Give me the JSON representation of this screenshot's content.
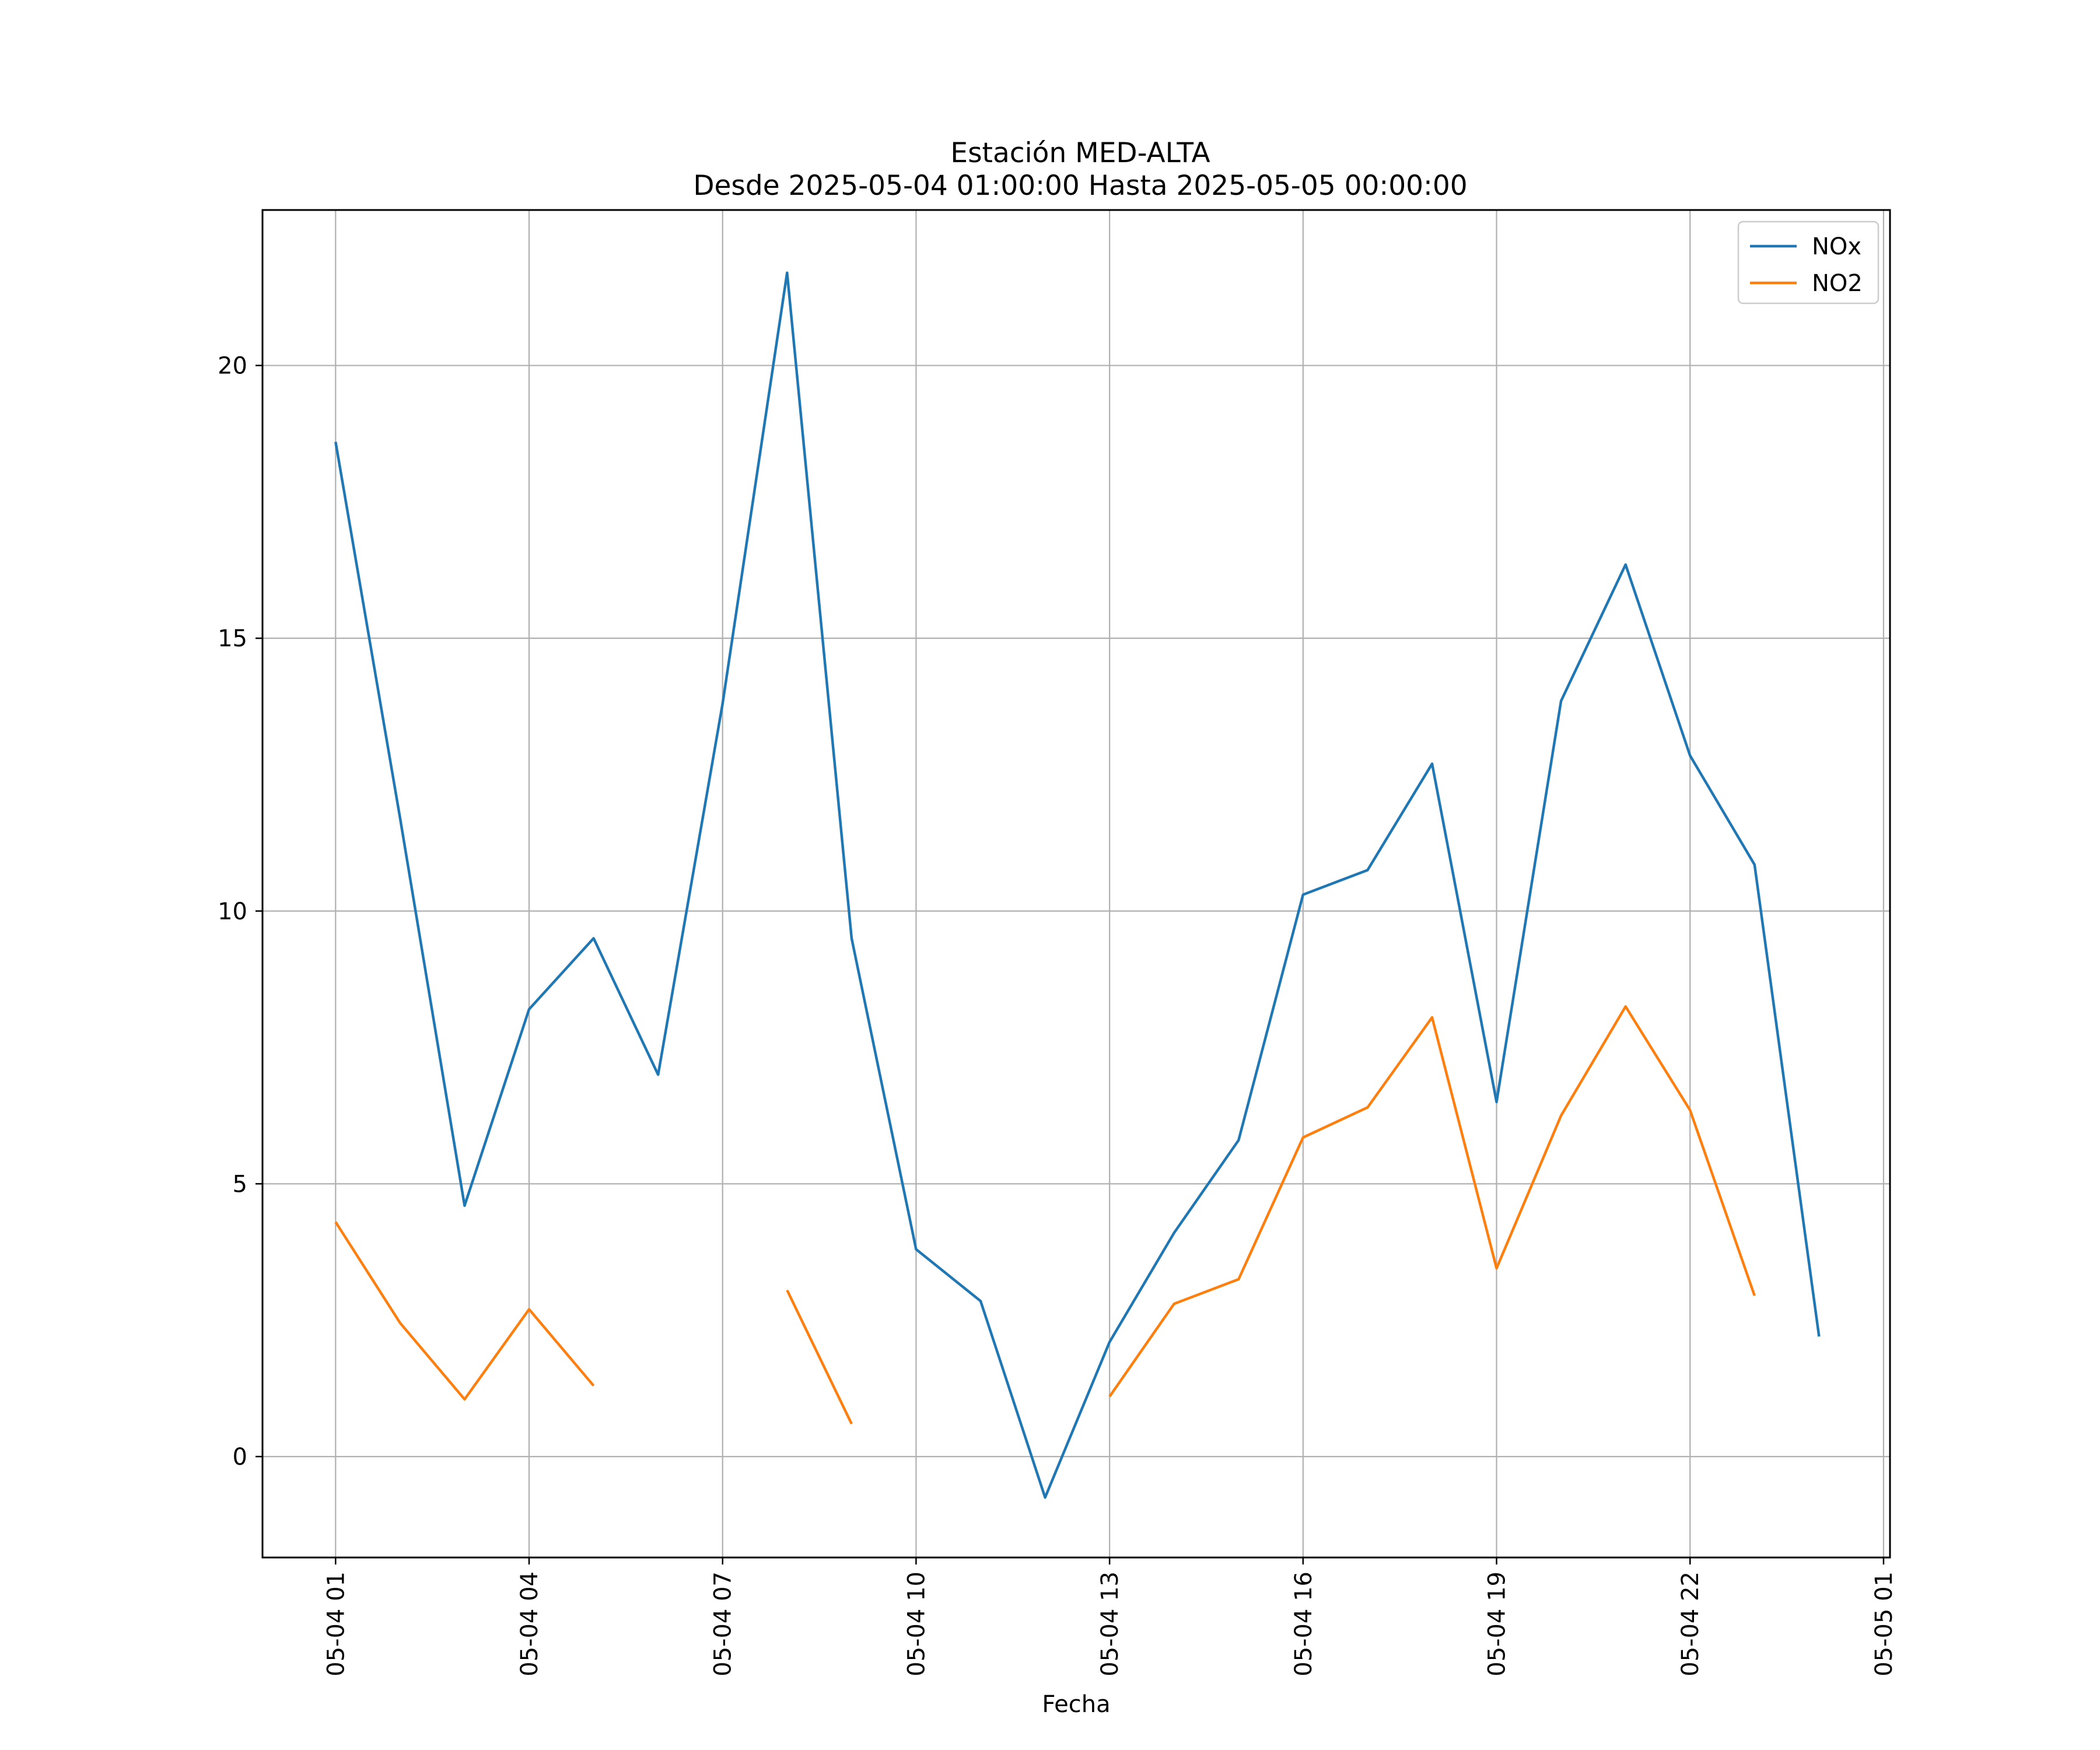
{
  "chart_data": {
    "type": "line",
    "title": "Estación MED-ALTA",
    "subtitle": "Desde 2025-05-04 01:00:00 Hasta 2025-05-05 00:00:00",
    "xlabel": "Fecha",
    "ylabel": "",
    "x": [
      "2025-05-04 01:00",
      "2025-05-04 02:00",
      "2025-05-04 03:00",
      "2025-05-04 04:00",
      "2025-05-04 05:00",
      "2025-05-04 06:00",
      "2025-05-04 07:00",
      "2025-05-04 08:00",
      "2025-05-04 09:00",
      "2025-05-04 10:00",
      "2025-05-04 11:00",
      "2025-05-04 12:00",
      "2025-05-04 13:00",
      "2025-05-04 14:00",
      "2025-05-04 15:00",
      "2025-05-04 16:00",
      "2025-05-04 17:00",
      "2025-05-04 18:00",
      "2025-05-04 19:00",
      "2025-05-04 20:00",
      "2025-05-04 21:00",
      "2025-05-04 22:00",
      "2025-05-04 23:00",
      "2025-05-05 00:00"
    ],
    "series": [
      {
        "name": "NOx",
        "color": "#1f77b4",
        "values": [
          18.6,
          11.7,
          4.6,
          8.2,
          9.5,
          7.0,
          13.8,
          21.7,
          9.5,
          3.8,
          2.85,
          -0.75,
          2.1,
          4.1,
          5.8,
          10.3,
          10.75,
          12.7,
          6.5,
          13.85,
          16.35,
          12.85,
          10.85,
          2.2
        ]
      },
      {
        "name": "NO2",
        "color": "#ff7f0e",
        "values": [
          4.3,
          2.45,
          1.05,
          2.7,
          1.3,
          null,
          null,
          3.05,
          0.6,
          null,
          null,
          null,
          1.1,
          2.8,
          3.25,
          5.85,
          6.4,
          8.05,
          3.45,
          6.25,
          8.25,
          6.35,
          2.95,
          null
        ]
      }
    ],
    "xticks": [
      "05-04 01",
      "05-04 04",
      "05-04 07",
      "05-04 10",
      "05-04 13",
      "05-04 16",
      "05-04 19",
      "05-04 22",
      "05-05 01"
    ],
    "xlim": [
      "2025-05-03 23:52",
      "2025-05-05 01:06"
    ],
    "yticks": [
      0,
      5,
      10,
      15,
      20
    ],
    "ylim": [
      -1.85,
      22.85
    ],
    "grid": true,
    "legend": "top-right"
  }
}
